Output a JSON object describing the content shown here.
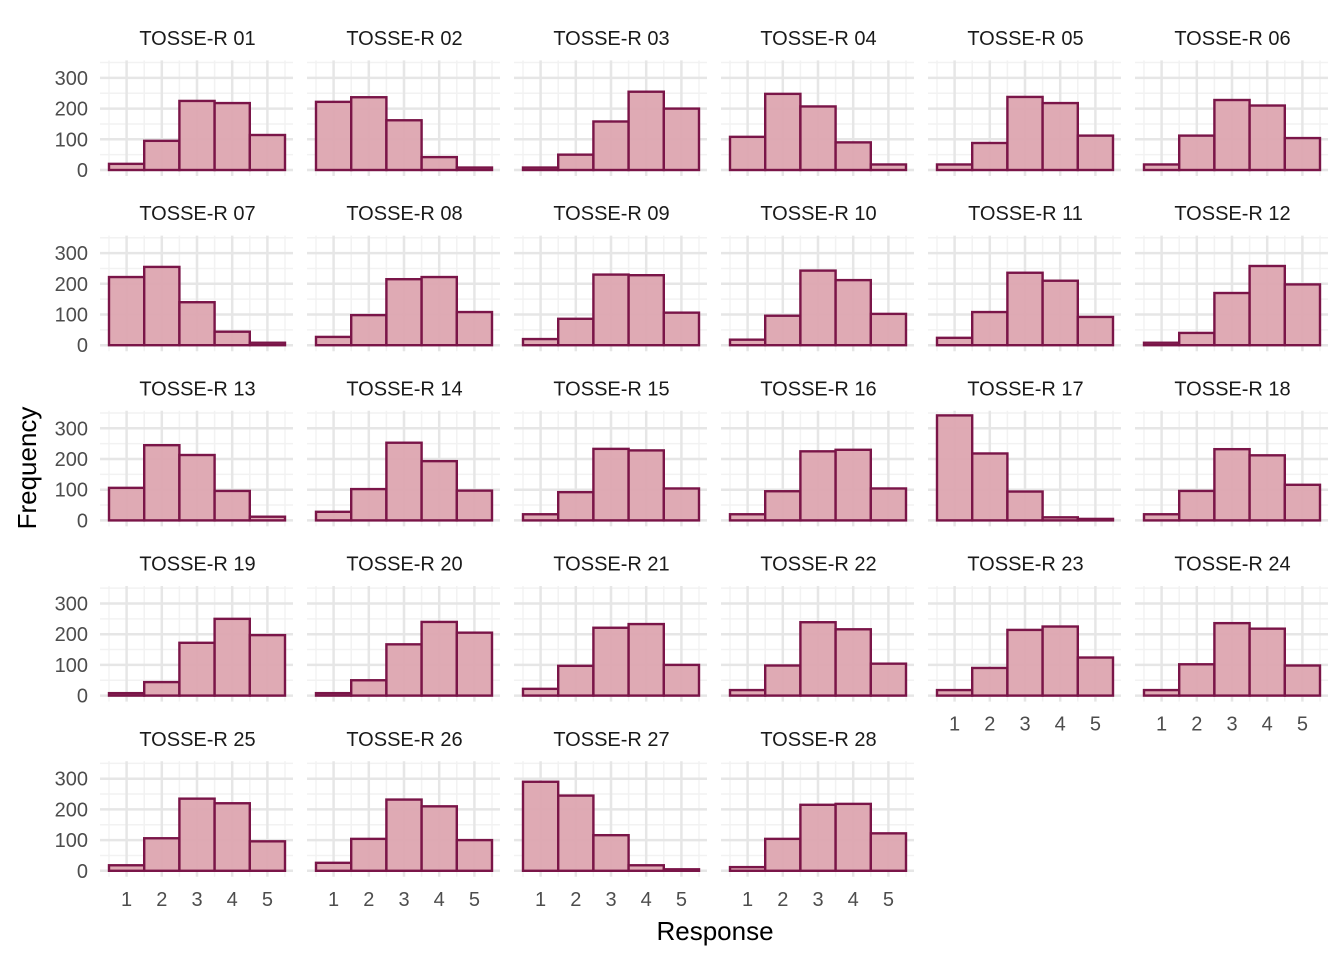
{
  "chart_data": {
    "type": "bar",
    "subtype": "faceted-histogram",
    "xlabel": "Response",
    "ylabel": "Frequency",
    "categories": [
      "1",
      "2",
      "3",
      "4",
      "5"
    ],
    "y_ticks": [
      "0",
      "100",
      "200",
      "300"
    ],
    "ylim": [
      0,
      357
    ],
    "grid": true,
    "ncol": 6,
    "colors": {
      "fill": "#DDA5B0",
      "stroke": "#7A1548",
      "grid_major": "#E6E6E6",
      "grid_minor": "#F2F2F2"
    },
    "panels": [
      {
        "title": "TOSSE-R 01",
        "values": [
          20,
          95,
          225,
          218,
          114
        ]
      },
      {
        "title": "TOSSE-R 02",
        "values": [
          222,
          237,
          162,
          42,
          8
        ]
      },
      {
        "title": "TOSSE-R 03",
        "values": [
          8,
          50,
          158,
          255,
          200
        ]
      },
      {
        "title": "TOSSE-R 04",
        "values": [
          108,
          248,
          207,
          90,
          18
        ]
      },
      {
        "title": "TOSSE-R 05",
        "values": [
          18,
          88,
          238,
          218,
          112
        ]
      },
      {
        "title": "TOSSE-R 06",
        "values": [
          18,
          112,
          228,
          210,
          104
        ]
      },
      {
        "title": "TOSSE-R 07",
        "values": [
          222,
          255,
          140,
          44,
          8
        ]
      },
      {
        "title": "TOSSE-R 08",
        "values": [
          27,
          98,
          215,
          222,
          108
        ]
      },
      {
        "title": "TOSSE-R 09",
        "values": [
          20,
          86,
          230,
          228,
          106
        ]
      },
      {
        "title": "TOSSE-R 10",
        "values": [
          18,
          96,
          243,
          212,
          102
        ]
      },
      {
        "title": "TOSSE-R 11",
        "values": [
          24,
          108,
          236,
          210,
          92
        ]
      },
      {
        "title": "TOSSE-R 12",
        "values": [
          8,
          40,
          170,
          258,
          198
        ]
      },
      {
        "title": "TOSSE-R 13",
        "values": [
          106,
          245,
          213,
          96,
          12
        ]
      },
      {
        "title": "TOSSE-R 14",
        "values": [
          28,
          102,
          253,
          193,
          97
        ]
      },
      {
        "title": "TOSSE-R 15",
        "values": [
          20,
          92,
          233,
          228,
          104
        ]
      },
      {
        "title": "TOSSE-R 16",
        "values": [
          20,
          95,
          225,
          230,
          104
        ]
      },
      {
        "title": "TOSSE-R 17",
        "values": [
          342,
          218,
          94,
          10,
          3
        ]
      },
      {
        "title": "TOSSE-R 18",
        "values": [
          20,
          96,
          232,
          212,
          116
        ]
      },
      {
        "title": "TOSSE-R 19",
        "values": [
          8,
          44,
          172,
          250,
          197
        ]
      },
      {
        "title": "TOSSE-R 20",
        "values": [
          8,
          50,
          167,
          240,
          205
        ]
      },
      {
        "title": "TOSSE-R 21",
        "values": [
          22,
          97,
          221,
          233,
          100
        ]
      },
      {
        "title": "TOSSE-R 22",
        "values": [
          18,
          98,
          239,
          216,
          104
        ]
      },
      {
        "title": "TOSSE-R 23",
        "values": [
          18,
          90,
          214,
          225,
          124
        ]
      },
      {
        "title": "TOSSE-R 24",
        "values": [
          18,
          102,
          236,
          218,
          98
        ]
      },
      {
        "title": "TOSSE-R 25",
        "values": [
          18,
          106,
          235,
          220,
          96
        ]
      },
      {
        "title": "TOSSE-R 26",
        "values": [
          26,
          104,
          232,
          210,
          100
        ]
      },
      {
        "title": "TOSSE-R 27",
        "values": [
          290,
          245,
          116,
          18,
          3
        ]
      },
      {
        "title": "TOSSE-R 28",
        "values": [
          12,
          104,
          215,
          218,
          122
        ]
      }
    ]
  }
}
